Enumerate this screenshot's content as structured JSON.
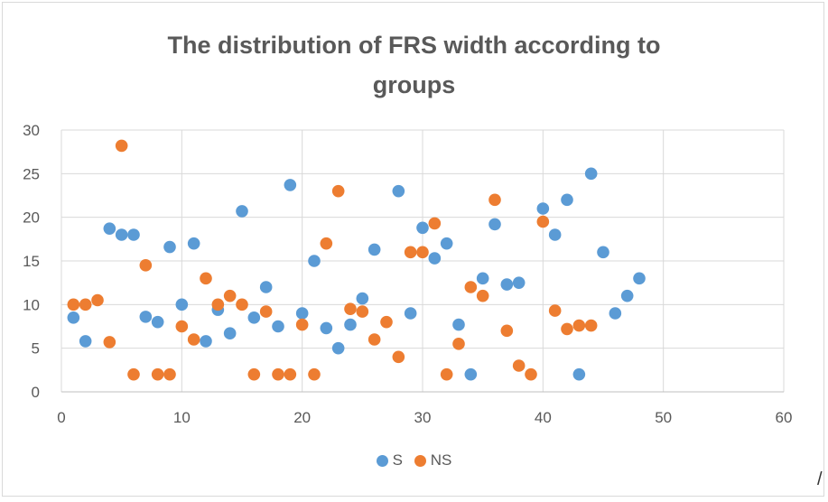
{
  "chart_data": {
    "type": "scatter",
    "title_line1": "The distribution of FRS width according to",
    "title_line2": "groups",
    "xlabel": "",
    "ylabel": "",
    "xlim": [
      0,
      60
    ],
    "ylim": [
      0,
      30
    ],
    "x_ticks": [
      "0",
      "10",
      "20",
      "30",
      "40",
      "50",
      "60"
    ],
    "y_ticks": [
      "0",
      "5",
      "10",
      "15",
      "20",
      "25",
      "30"
    ],
    "grid": true,
    "legend_position": "bottom",
    "series": [
      {
        "name": "S",
        "color": "#5b9bd5",
        "points": [
          [
            1,
            8.5
          ],
          [
            2,
            5.8
          ],
          [
            4,
            18.7
          ],
          [
            5,
            18
          ],
          [
            6,
            18
          ],
          [
            7,
            8.6
          ],
          [
            8,
            8
          ],
          [
            9,
            16.6
          ],
          [
            10,
            10
          ],
          [
            11,
            17
          ],
          [
            12,
            5.8
          ],
          [
            13,
            9.4
          ],
          [
            14,
            6.7
          ],
          [
            15,
            20.7
          ],
          [
            16,
            8.5
          ],
          [
            17,
            12
          ],
          [
            18,
            7.5
          ],
          [
            19,
            23.7
          ],
          [
            20,
            9
          ],
          [
            21,
            15
          ],
          [
            22,
            7.3
          ],
          [
            23,
            5
          ],
          [
            24,
            7.7
          ],
          [
            25,
            10.7
          ],
          [
            26,
            16.3
          ],
          [
            28,
            23
          ],
          [
            29,
            9
          ],
          [
            30,
            18.8
          ],
          [
            31,
            15.3
          ],
          [
            32,
            17
          ],
          [
            33,
            7.7
          ],
          [
            34,
            2
          ],
          [
            35,
            13
          ],
          [
            36,
            19.2
          ],
          [
            37,
            12.3
          ],
          [
            38,
            12.5
          ],
          [
            40,
            21
          ],
          [
            41,
            18
          ],
          [
            42,
            22
          ],
          [
            43,
            2
          ],
          [
            44,
            25
          ],
          [
            45,
            16
          ],
          [
            46,
            9
          ],
          [
            47,
            11
          ],
          [
            48,
            13
          ]
        ]
      },
      {
        "name": "NS",
        "color": "#ed7d31",
        "points": [
          [
            1,
            10
          ],
          [
            2,
            10
          ],
          [
            3,
            10.5
          ],
          [
            4,
            5.7
          ],
          [
            5,
            28.2
          ],
          [
            6,
            2
          ],
          [
            7,
            14.5
          ],
          [
            8,
            2
          ],
          [
            9,
            2
          ],
          [
            10,
            7.5
          ],
          [
            11,
            6
          ],
          [
            12,
            13
          ],
          [
            13,
            10
          ],
          [
            14,
            11
          ],
          [
            15,
            10
          ],
          [
            16,
            2
          ],
          [
            17,
            9.2
          ],
          [
            18,
            2
          ],
          [
            19,
            2
          ],
          [
            20,
            7.7
          ],
          [
            21,
            2
          ],
          [
            22,
            17
          ],
          [
            23,
            23
          ],
          [
            24,
            9.5
          ],
          [
            25,
            9.2
          ],
          [
            26,
            6
          ],
          [
            27,
            8
          ],
          [
            28,
            4
          ],
          [
            29,
            16
          ],
          [
            30,
            16
          ],
          [
            31,
            19.3
          ],
          [
            32,
            2
          ],
          [
            33,
            5.5
          ],
          [
            34,
            12
          ],
          [
            35,
            11
          ],
          [
            36,
            22
          ],
          [
            37,
            7
          ],
          [
            38,
            3
          ],
          [
            39,
            2
          ],
          [
            40,
            19.5
          ],
          [
            41,
            9.3
          ],
          [
            42,
            7.2
          ],
          [
            43,
            7.6
          ],
          [
            44,
            7.6
          ]
        ]
      }
    ]
  },
  "corner_mark": "/"
}
